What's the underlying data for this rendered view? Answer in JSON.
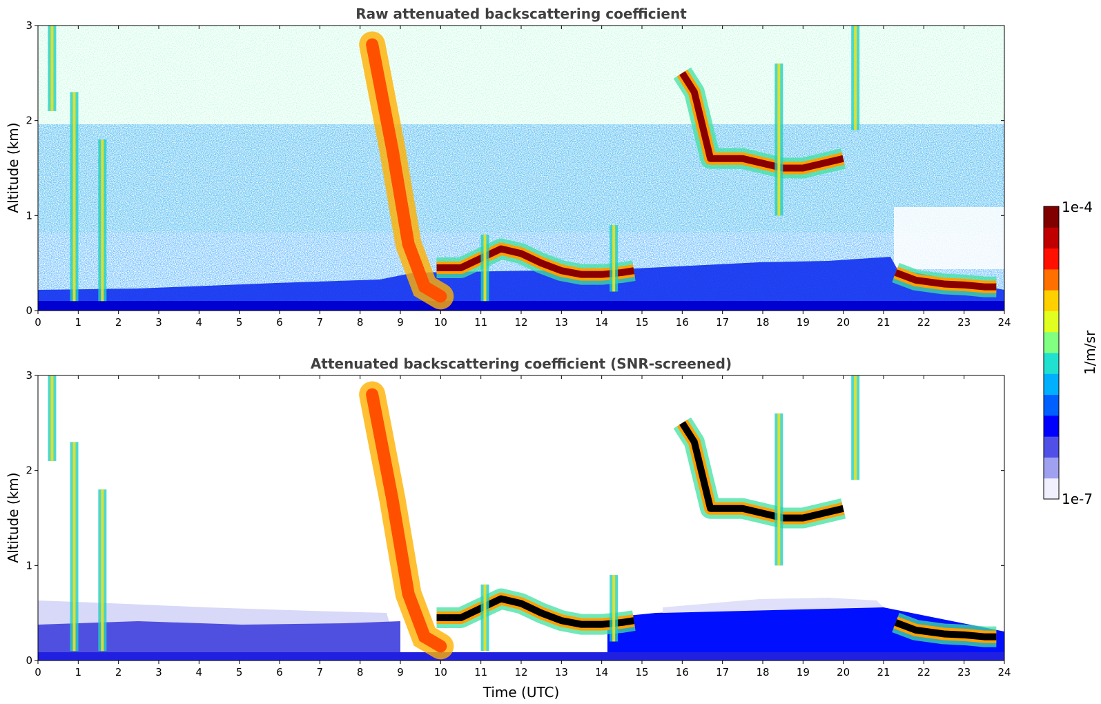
{
  "chart_data": [
    {
      "type": "heatmap",
      "title": "Raw attenuated backscattering coefficient",
      "xlabel": "",
      "ylabel": "Altitude (km)",
      "xlim": [
        0,
        24
      ],
      "ylim": [
        0,
        3
      ],
      "x_ticks": [
        "0",
        "1",
        "2",
        "3",
        "4",
        "5",
        "6",
        "7",
        "8",
        "9",
        "10",
        "11",
        "12",
        "13",
        "14",
        "15",
        "16",
        "17",
        "18",
        "19",
        "20",
        "21",
        "22",
        "23",
        "24"
      ],
      "y_ticks": [
        "0",
        "1",
        "2",
        "3"
      ],
      "features": [
        {
          "kind": "boundary_layer",
          "points": [
            [
              9.9,
              0.45
            ],
            [
              10.5,
              0.45
            ],
            [
              11.0,
              0.55
            ],
            [
              11.5,
              0.65
            ],
            [
              12.0,
              0.6
            ],
            [
              12.5,
              0.5
            ],
            [
              13.0,
              0.42
            ],
            [
              13.5,
              0.38
            ],
            [
              14.0,
              0.38
            ],
            [
              14.5,
              0.4
            ],
            [
              14.8,
              0.42
            ]
          ]
        },
        {
          "kind": "boundary_layer",
          "points": [
            [
              21.3,
              0.4
            ],
            [
              21.8,
              0.32
            ],
            [
              22.5,
              0.28
            ],
            [
              23.0,
              0.27
            ],
            [
              23.5,
              0.25
            ],
            [
              23.8,
              0.25
            ]
          ]
        },
        {
          "kind": "cloud_layer",
          "points": [
            [
              16.0,
              2.5
            ],
            [
              16.3,
              2.3
            ],
            [
              16.7,
              1.6
            ],
            [
              17.5,
              1.6
            ],
            [
              18.0,
              1.55
            ],
            [
              18.5,
              1.5
            ],
            [
              19.0,
              1.5
            ],
            [
              19.5,
              1.55
            ],
            [
              20.0,
              1.6
            ]
          ]
        },
        {
          "kind": "falling_plume",
          "points": [
            [
              8.3,
              2.8
            ],
            [
              8.8,
              1.7
            ],
            [
              9.2,
              0.7
            ],
            [
              9.6,
              0.25
            ],
            [
              10.0,
              0.15
            ]
          ]
        }
      ]
    },
    {
      "type": "heatmap",
      "title": "Attenuated backscattering coefficient (SNR-screened)",
      "xlabel": "Time (UTC)",
      "ylabel": "Altitude (km)",
      "xlim": [
        0,
        24
      ],
      "ylim": [
        0,
        3
      ],
      "x_ticks": [
        "0",
        "1",
        "2",
        "3",
        "4",
        "5",
        "6",
        "7",
        "8",
        "9",
        "10",
        "11",
        "12",
        "13",
        "14",
        "15",
        "16",
        "17",
        "18",
        "19",
        "20",
        "21",
        "22",
        "23",
        "24"
      ],
      "y_ticks": [
        "0",
        "1",
        "2",
        "3"
      ]
    }
  ],
  "colorbar": {
    "label": "1/m/sr",
    "min_label": "1e-7",
    "max_label": "1e-4",
    "colors": [
      "#f0f0ff",
      "#a0a0f0",
      "#5050e8",
      "#0000ff",
      "#0060ff",
      "#00b0ff",
      "#20e0d0",
      "#80ff80",
      "#e0ff20",
      "#ffd000",
      "#ff7000",
      "#ff1000",
      "#c00000",
      "#800000"
    ]
  }
}
